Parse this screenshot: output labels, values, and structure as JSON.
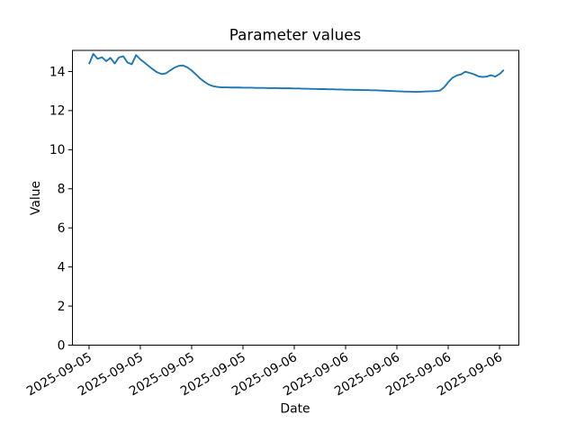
{
  "figure": {
    "background": "#ffffff"
  },
  "chart_data": {
    "type": "line",
    "title": "Parameter values",
    "xlabel": "Date",
    "ylabel": "Value",
    "grid": false,
    "legend": false,
    "line_color": "#1f77b4",
    "axis_color": "#000000",
    "x_start_hour": 12.0,
    "x_step_hours": 0.25,
    "values": [
      14.38,
      14.9,
      14.65,
      14.73,
      14.53,
      14.7,
      14.41,
      14.72,
      14.78,
      14.46,
      14.37,
      14.84,
      14.62,
      14.45,
      14.27,
      14.1,
      13.95,
      13.87,
      13.91,
      14.06,
      14.2,
      14.29,
      14.31,
      14.21,
      14.05,
      13.85,
      13.64,
      13.47,
      13.33,
      13.25,
      13.21,
      13.19,
      13.19,
      13.18,
      13.18,
      13.18,
      13.17,
      13.17,
      13.17,
      13.16,
      13.16,
      13.16,
      13.15,
      13.15,
      13.15,
      13.14,
      13.14,
      13.14,
      13.13,
      13.13,
      13.12,
      13.12,
      13.11,
      13.11,
      13.1,
      13.1,
      13.09,
      13.09,
      13.08,
      13.08,
      13.07,
      13.07,
      13.06,
      13.06,
      13.05,
      13.05,
      13.04,
      13.04,
      13.03,
      13.02,
      13.01,
      13.0,
      12.99,
      12.98,
      12.97,
      12.97,
      12.96,
      12.96,
      12.97,
      12.98,
      12.99,
      13.0,
      13.02,
      13.18,
      13.45,
      13.68,
      13.8,
      13.85,
      13.99,
      13.93,
      13.86,
      13.76,
      13.72,
      13.74,
      13.81,
      13.74,
      13.87,
      14.08
    ],
    "x_ticks": {
      "hours": [
        12,
        15,
        18,
        21,
        24,
        27,
        30,
        33,
        36
      ],
      "labels": [
        "2025-09-05",
        "2025-09-05",
        "2025-09-05",
        "2025-09-05",
        "2025-09-06",
        "2025-09-06",
        "2025-09-06",
        "2025-09-06",
        "2025-09-06"
      ]
    },
    "y_ticks": [
      0,
      2,
      4,
      6,
      8,
      10,
      12,
      14
    ],
    "xlim_hours": [
      11.03,
      37.13
    ],
    "ylim": [
      0,
      15.08
    ]
  }
}
